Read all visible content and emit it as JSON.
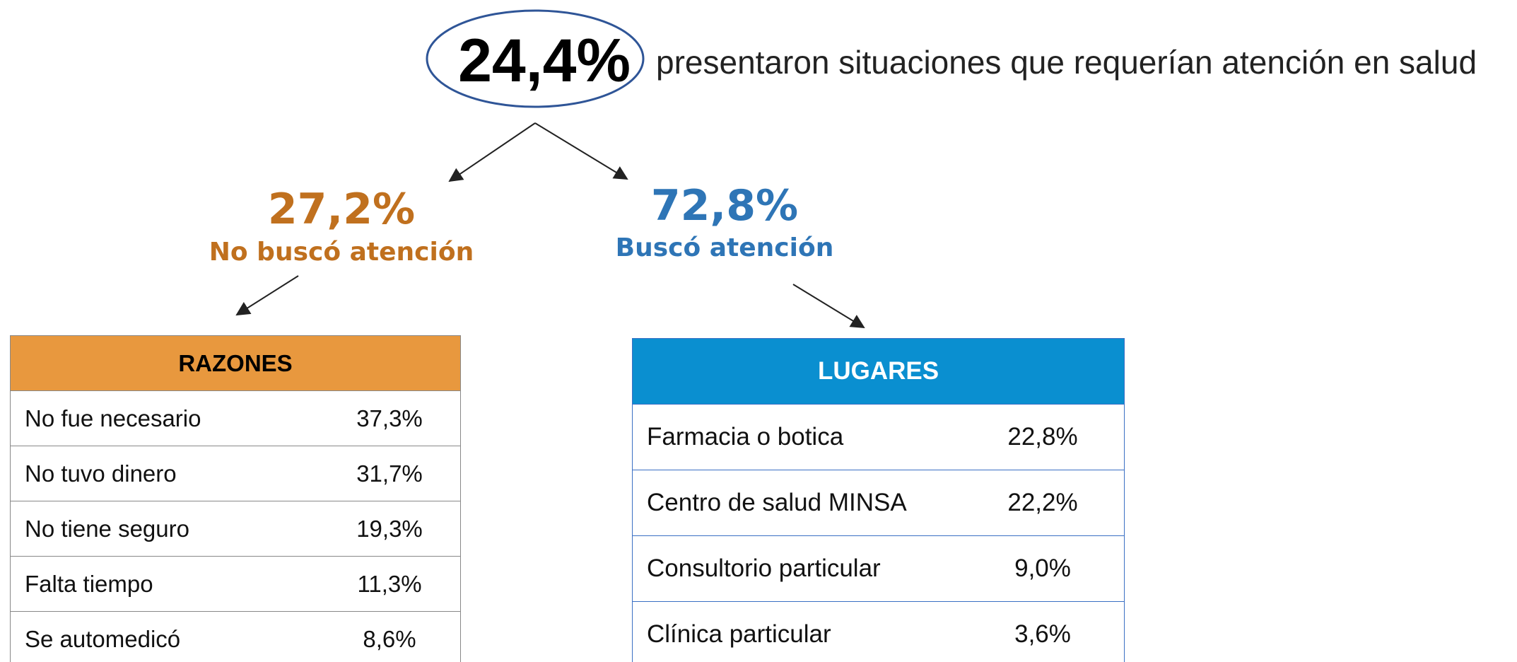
{
  "header": {
    "value": "24,4%",
    "text": "presentaron situaciones que requerían atención en salud"
  },
  "branches": [
    {
      "value": "27,2%",
      "label": "No buscó atención"
    },
    {
      "value": "72,8%",
      "label": "Buscó atención"
    }
  ],
  "tables": [
    {
      "title": "RAZONES",
      "rows": [
        [
          "No fue necesario",
          "37,3%"
        ],
        [
          "No tuvo dinero",
          "31,7%"
        ],
        [
          "No tiene seguro",
          "19,3%"
        ],
        [
          "Falta tiempo",
          "11,3%"
        ],
        [
          "Se automedicó",
          "8,6%"
        ]
      ]
    },
    {
      "title": "LUGARES",
      "rows": [
        [
          "Farmacia o botica",
          "22,8%"
        ],
        [
          "Centro de salud MINSA",
          "22,2%"
        ],
        [
          "Consultorio particular",
          "9,0%"
        ],
        [
          "Clínica particular",
          "3,6%"
        ]
      ]
    }
  ]
}
